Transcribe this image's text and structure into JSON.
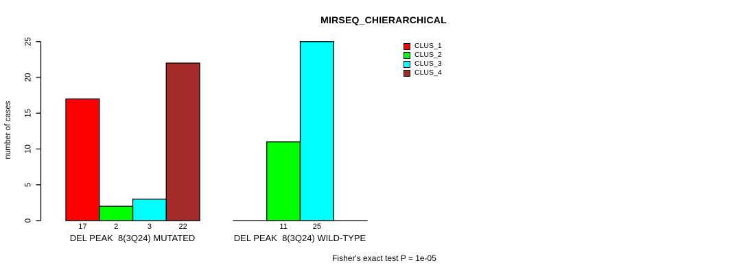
{
  "title": "MIRSEQ_CHIERARCHICAL",
  "legend": {
    "position": "top-right",
    "items": [
      {
        "label": "CLUS_1",
        "color": "#FF0000"
      },
      {
        "label": "CLUS_2",
        "color": "#00FF00"
      },
      {
        "label": "CLUS_3",
        "color": "#00FFFF"
      },
      {
        "label": "CLUS_4",
        "color": "#A52A2A"
      }
    ]
  },
  "chart_data": {
    "type": "bar",
    "title": "MIRSEQ_CHIERARCHICAL",
    "ylabel": "number of cases",
    "xlabel": "",
    "ylim": [
      0,
      25
    ],
    "yticks": [
      0,
      5,
      10,
      15,
      20,
      25
    ],
    "grid": false,
    "legend_position": "top-right",
    "series_names": [
      "CLUS_1",
      "CLUS_2",
      "CLUS_3",
      "CLUS_4"
    ],
    "series_colors": [
      "#FF0000",
      "#00FF00",
      "#00FFFF",
      "#A52A2A"
    ],
    "bar_border_color": "#000000",
    "groups": [
      {
        "label": "DEL PEAK  8(3Q24) MUTATED",
        "values": [
          17,
          2,
          3,
          22
        ],
        "bar_labels": [
          "17",
          "2",
          "3",
          "22"
        ]
      },
      {
        "label": "DEL PEAK  8(3Q24) WILD-TYPE",
        "values": [
          0,
          11,
          25,
          0
        ],
        "bar_labels": [
          "",
          "11",
          "25",
          ""
        ]
      }
    ],
    "annotation": "Fisher's exact test P = 1e-05"
  }
}
